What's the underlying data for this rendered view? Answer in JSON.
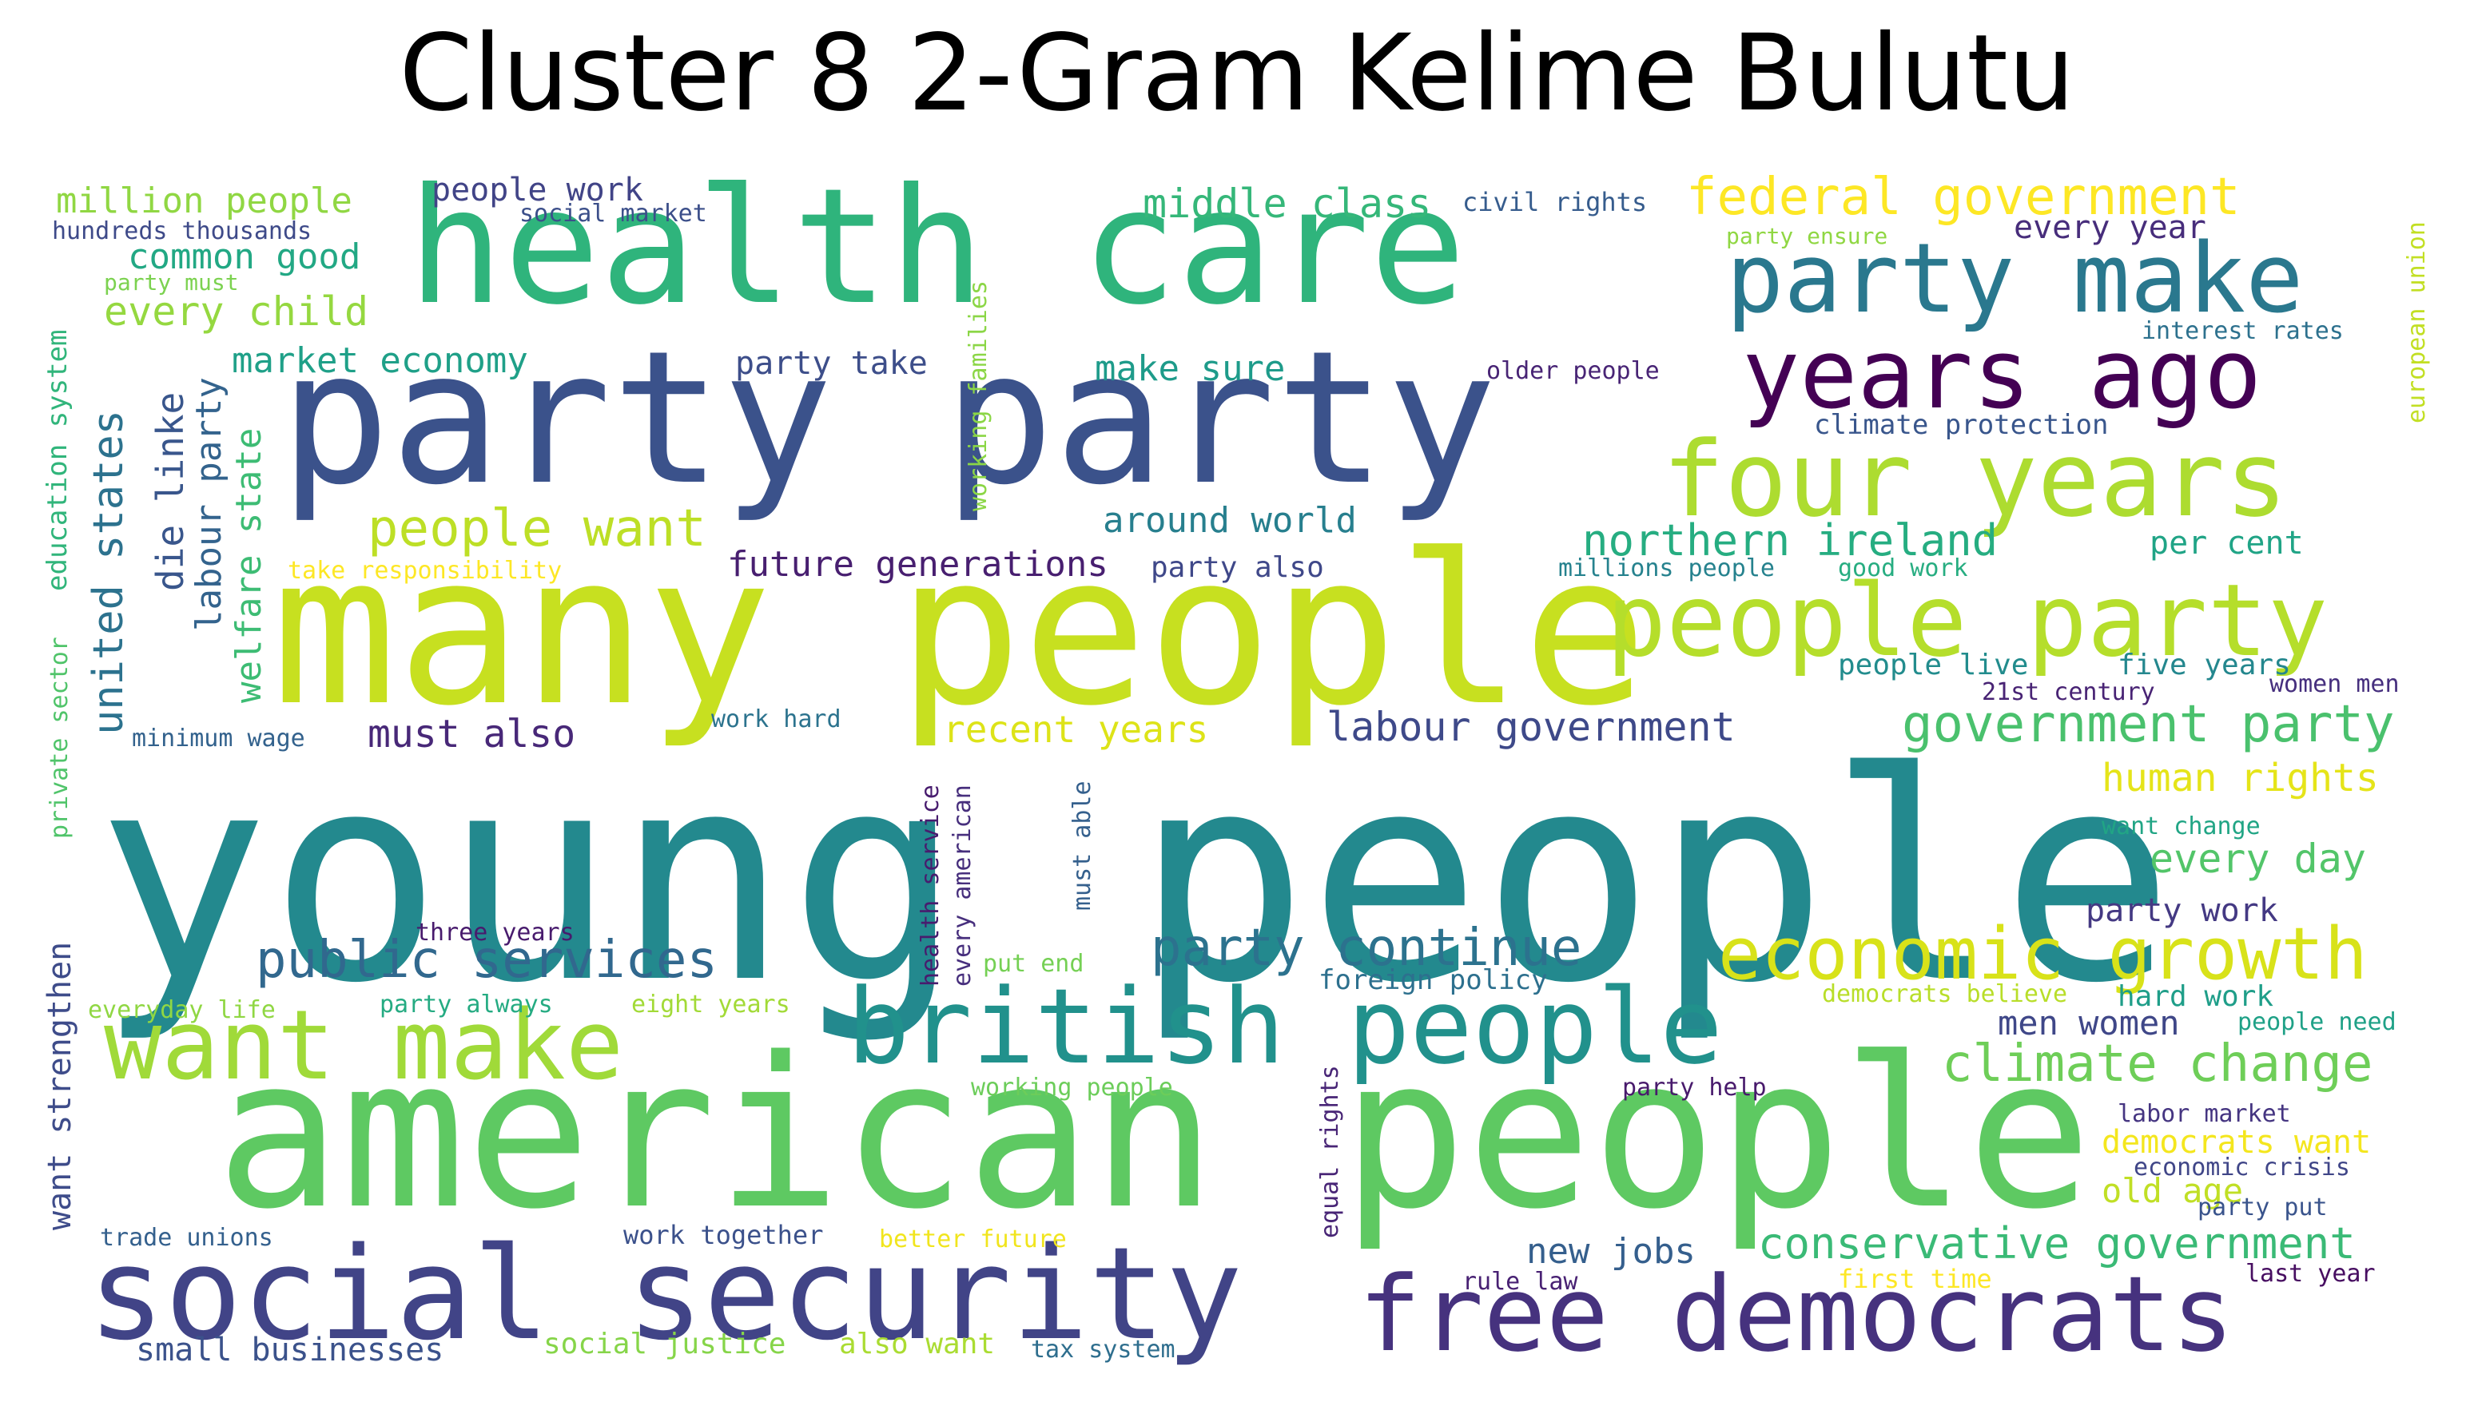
{
  "title": "Cluster 8 2-Gram Kelime Bulutu",
  "words": [
    {
      "text": "young people",
      "color": "#23898e"
    },
    {
      "text": "many people",
      "color": "#c7e020"
    },
    {
      "text": "american people",
      "color": "#5ec962"
    },
    {
      "text": "party party",
      "color": "#3b528b"
    },
    {
      "text": "health care",
      "color": "#2fb47c"
    },
    {
      "text": "social security",
      "color": "#414487"
    },
    {
      "text": "free democrats",
      "color": "#46327e"
    },
    {
      "text": "british people",
      "color": "#21918c"
    },
    {
      "text": "want make",
      "color": "#a0da39"
    },
    {
      "text": "party make",
      "color": "#2a788e"
    },
    {
      "text": "years ago",
      "color": "#440154"
    },
    {
      "text": "four years",
      "color": "#addc30"
    },
    {
      "text": "people party",
      "color": "#b5de2b"
    },
    {
      "text": "economic growth",
      "color": "#d8e219"
    },
    {
      "text": "public services",
      "color": "#31688e"
    },
    {
      "text": "party continue",
      "color": "#2c728e"
    },
    {
      "text": "federal government",
      "color": "#fde725"
    },
    {
      "text": "government party",
      "color": "#4ac16d"
    },
    {
      "text": "climate change",
      "color": "#6ece58"
    },
    {
      "text": "people want",
      "color": "#bddf26"
    },
    {
      "text": "conservative government",
      "color": "#3aba76"
    },
    {
      "text": "labour government",
      "color": "#3e4989"
    },
    {
      "text": "middle class",
      "color": "#35b779"
    },
    {
      "text": "every child",
      "color": "#95d840"
    },
    {
      "text": "northern ireland",
      "color": "#26ad81"
    },
    {
      "text": "human rights",
      "color": "#e5e419"
    },
    {
      "text": "must also",
      "color": "#482878"
    },
    {
      "text": "recent years",
      "color": "#dde318"
    },
    {
      "text": "every day",
      "color": "#52c569"
    },
    {
      "text": "future generations",
      "color": "#481f70"
    },
    {
      "text": "around world",
      "color": "#277f8e"
    },
    {
      "text": "market economy",
      "color": "#1fa088"
    },
    {
      "text": "make sure",
      "color": "#1e9b8a"
    },
    {
      "text": "million people",
      "color": "#90d743"
    },
    {
      "text": "common good",
      "color": "#22a884"
    },
    {
      "text": "new jobs",
      "color": "#355f8d"
    },
    {
      "text": "men women",
      "color": "#3f4788"
    },
    {
      "text": "old age",
      "color": "#c0df25"
    },
    {
      "text": "democrats want",
      "color": "#f4e61e"
    },
    {
      "text": "party work",
      "color": "#443983"
    },
    {
      "text": "per cent",
      "color": "#20a486"
    },
    {
      "text": "small businesses",
      "color": "#3b528b"
    },
    {
      "text": "party take",
      "color": "#3d4e8a"
    },
    {
      "text": "people work",
      "color": "#414487"
    },
    {
      "text": "every year",
      "color": "#472d7b"
    },
    {
      "text": "hard work",
      "color": "#1f9e89"
    },
    {
      "text": "social justice",
      "color": "#86d549"
    },
    {
      "text": "also want",
      "color": "#aadc32"
    },
    {
      "text": "foreign policy",
      "color": "#2d708e"
    },
    {
      "text": "civil rights",
      "color": "#365c8d"
    },
    {
      "text": "social market",
      "color": "#3c4f8a"
    },
    {
      "text": "hundreds thousands",
      "color": "#3e4a89"
    },
    {
      "text": "party must",
      "color": "#7cd250"
    },
    {
      "text": "interest rates",
      "color": "#2d718e"
    },
    {
      "text": "climate protection",
      "color": "#39568c"
    },
    {
      "text": "older people",
      "color": "#482475"
    },
    {
      "text": "party ensure",
      "color": "#90d743"
    },
    {
      "text": "take responsibility",
      "color": "#fde725"
    },
    {
      "text": "party also",
      "color": "#3f4889"
    },
    {
      "text": "millions people",
      "color": "#26828e"
    },
    {
      "text": "good work",
      "color": "#27ad81"
    },
    {
      "text": "people live",
      "color": "#228c8d"
    },
    {
      "text": "five years",
      "color": "#24878e"
    },
    {
      "text": "21st century",
      "color": "#482374"
    },
    {
      "text": "women men",
      "color": "#462f7e"
    },
    {
      "text": "work hard",
      "color": "#2c738e"
    },
    {
      "text": "minimum wage",
      "color": "#33628d"
    },
    {
      "text": "want change",
      "color": "#21a585"
    },
    {
      "text": "three years",
      "color": "#481b6d"
    },
    {
      "text": "put end",
      "color": "#75d054"
    },
    {
      "text": "party always",
      "color": "#25ab82"
    },
    {
      "text": "eight years",
      "color": "#a2da37"
    },
    {
      "text": "everyday life",
      "color": "#90d743"
    },
    {
      "text": "democrats believe",
      "color": "#b8de29"
    },
    {
      "text": "people need",
      "color": "#1fa187"
    },
    {
      "text": "working people",
      "color": "#6ccd5a"
    },
    {
      "text": "party help",
      "color": "#481a6c"
    },
    {
      "text": "labor market",
      "color": "#453581"
    },
    {
      "text": "economic crisis",
      "color": "#404688"
    },
    {
      "text": "party put",
      "color": "#3a548c"
    },
    {
      "text": "trade unions",
      "color": "#34608d"
    },
    {
      "text": "work together",
      "color": "#3b518b"
    },
    {
      "text": "better future",
      "color": "#f1e51d"
    },
    {
      "text": "rule law",
      "color": "#482173"
    },
    {
      "text": "first time",
      "color": "#fde725"
    },
    {
      "text": "last year",
      "color": "#470e61"
    },
    {
      "text": "tax system",
      "color": "#2e6e8e"
    },
    {
      "text": "united states",
      "color": "#2c728e"
    },
    {
      "text": "die linke",
      "color": "#39568c"
    },
    {
      "text": "labour party",
      "color": "#33638d"
    },
    {
      "text": "welfare state",
      "color": "#3dbc74"
    },
    {
      "text": "education system",
      "color": "#31b57b"
    },
    {
      "text": "private sector",
      "color": "#50c46a"
    },
    {
      "text": "want strengthen",
      "color": "#3e4c8a"
    },
    {
      "text": "working families",
      "color": "#8bd646"
    },
    {
      "text": "health service",
      "color": "#481c6e"
    },
    {
      "text": "every american",
      "color": "#472f7d"
    },
    {
      "text": "must able",
      "color": "#35608d"
    },
    {
      "text": "equal rights",
      "color": "#482576"
    },
    {
      "text": "european union",
      "color": "#c2df23"
    }
  ]
}
